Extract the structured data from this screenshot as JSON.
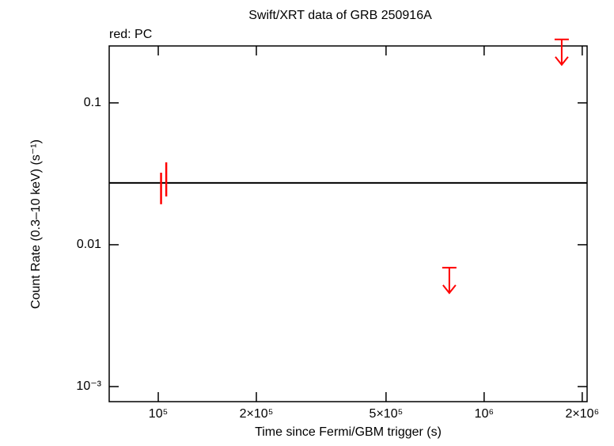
{
  "chart_data": {
    "type": "scatter",
    "title": "Swift/XRT data of GRB 250916A",
    "annotation": "red: PC",
    "x_label": "Time since Fermi/GBM trigger (s)",
    "y_label": "Count Rate (0.3–10 keV) (s⁻¹)",
    "log_x": true,
    "log_y": true,
    "xlim": [
      70700,
      2070000
    ],
    "ylim": [
      0.000783,
      0.252
    ],
    "xticks": [
      {
        "value": 100000,
        "label": "10⁵"
      },
      {
        "value": 200000,
        "label": "2×10⁵"
      },
      {
        "value": 500000,
        "label": "5×10⁵"
      },
      {
        "value": 1000000,
        "label": "10⁶"
      },
      {
        "value": 2000000,
        "label": "2×10⁶"
      }
    ],
    "yticks": [
      {
        "value": 0.001,
        "label": "10⁻³"
      },
      0.01,
      0.1
    ],
    "reference_line": 0.0273,
    "series": [
      {
        "color": "#ff0000",
        "x": [
          102000,
          105800
        ],
        "values": [
          0.0249,
          0.0284
        ],
        "y_low": [
          0.0193,
          0.0219
        ],
        "y_high": [
          0.0322,
          0.0381
        ]
      },
      {
        "color": "#ff0000",
        "upper_limit": true,
        "x": [
          782000,
          1730000
        ],
        "values": [
          0.00689,
          0.28
        ]
      }
    ]
  }
}
